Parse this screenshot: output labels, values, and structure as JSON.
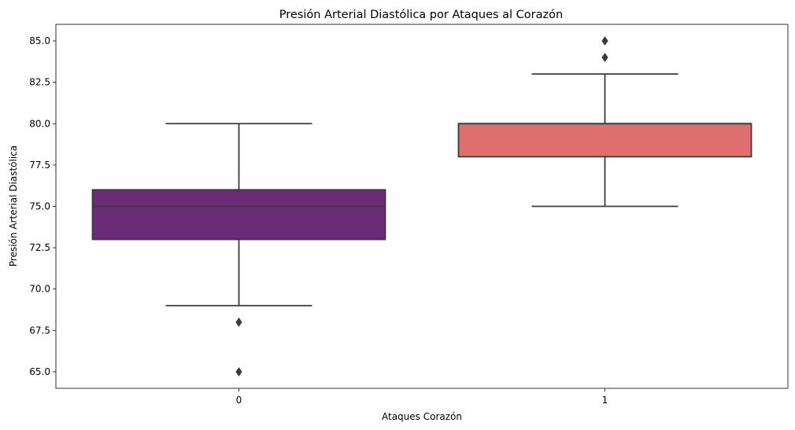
{
  "chart_data": {
    "type": "box",
    "title": "Presión Arterial Diastólica por Ataques al Corazón",
    "xlabel": "Ataques Corazón",
    "ylabel": "Presión Arterial Diastólica",
    "ylim": [
      64.0,
      86.0
    ],
    "yticks": [
      65.0,
      67.5,
      70.0,
      72.5,
      75.0,
      77.5,
      80.0,
      82.5,
      85.0
    ],
    "ytick_labels": [
      "65.0",
      "67.5",
      "70.0",
      "72.5",
      "75.0",
      "77.5",
      "80.0",
      "82.5",
      "85.0"
    ],
    "categories": [
      "0",
      "1"
    ],
    "grid": false,
    "boxes": [
      {
        "category": "0",
        "whisker_low": 69,
        "q1": 73,
        "median": 75,
        "q3": 76,
        "whisker_high": 80,
        "outliers": [
          68,
          65
        ],
        "color": "#6a2c77"
      },
      {
        "category": "1",
        "whisker_low": 75,
        "q1": 78,
        "median": 80,
        "q3": 80,
        "whisker_high": 83,
        "outliers": [
          84,
          85
        ],
        "color": "#e0706f"
      }
    ]
  }
}
